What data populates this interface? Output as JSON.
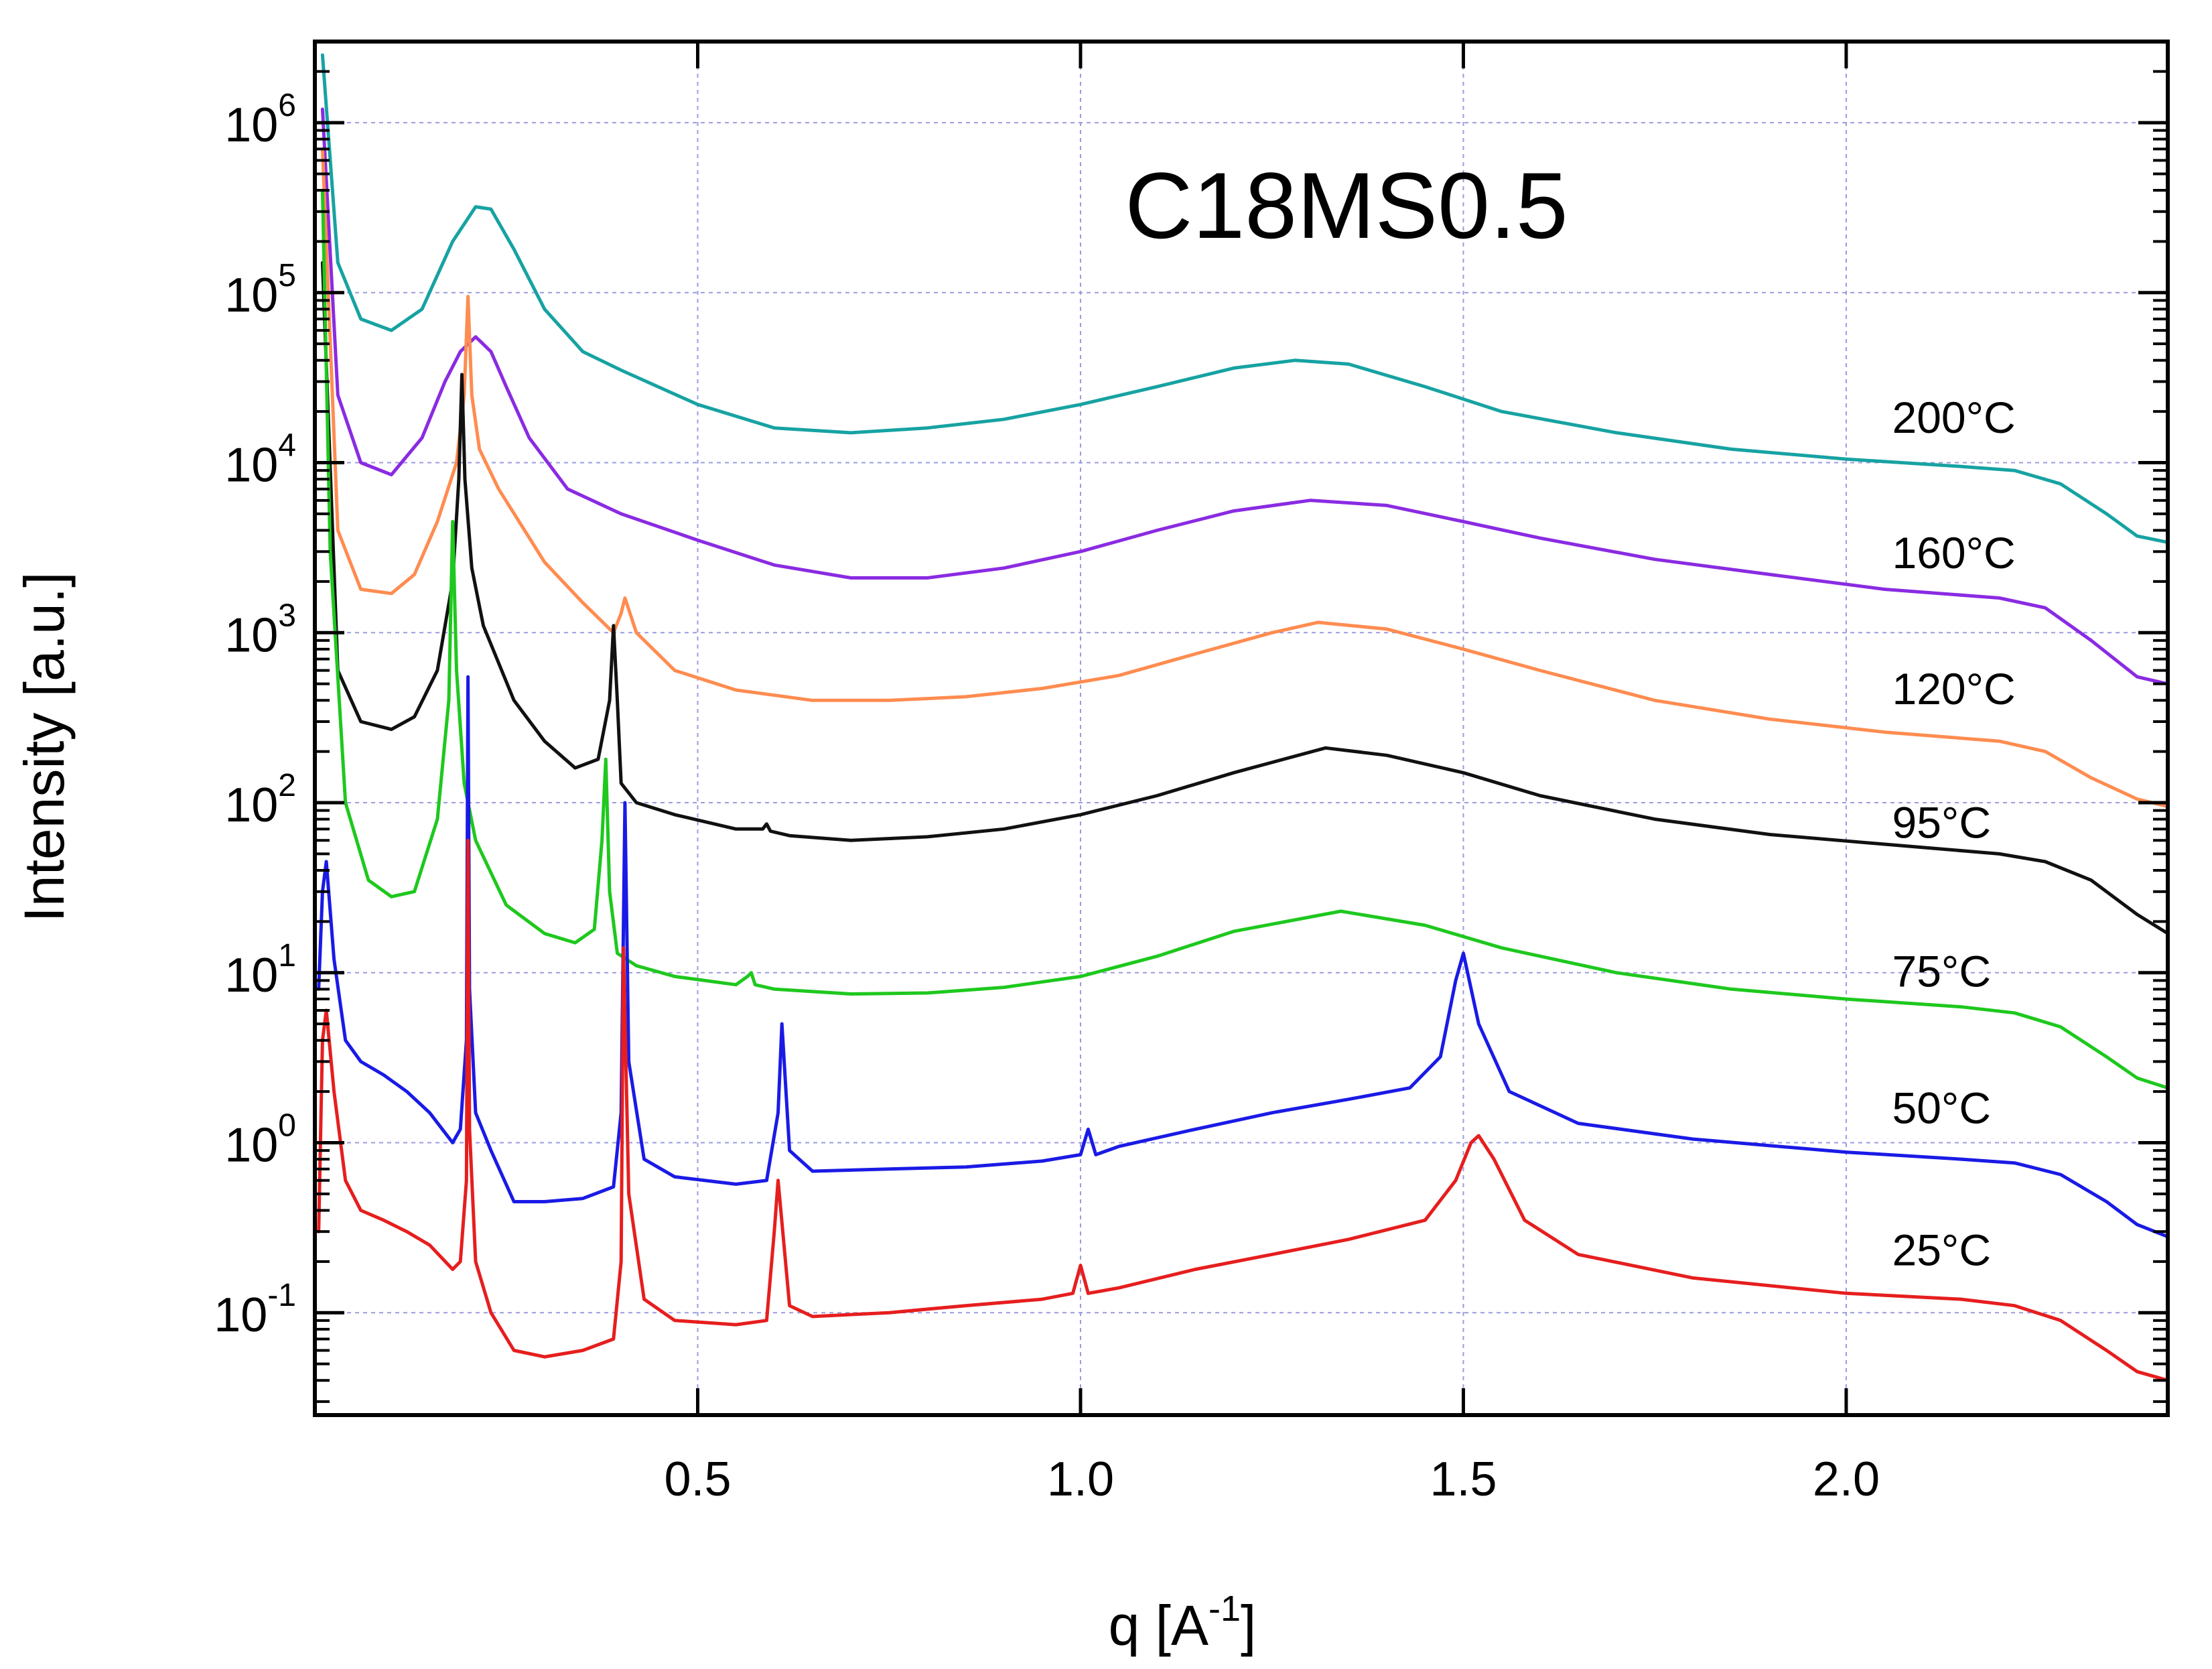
{
  "chart_data": {
    "type": "line",
    "title": "C18MS0.5",
    "xlabel": {
      "main": "q [A",
      "sup": "-1",
      "close": "]"
    },
    "ylabel": "Intensity [a.u.]",
    "xlim": [
      0.0,
      2.42
    ],
    "ylim": [
      0.025,
      3000000
    ],
    "yscale": "log",
    "grid": true,
    "x_ticks": [
      {
        "value": 0.5,
        "label": "0.5"
      },
      {
        "value": 1.0,
        "label": "1.0"
      },
      {
        "value": 1.5,
        "label": "1.5"
      },
      {
        "value": 2.0,
        "label": "2.0"
      }
    ],
    "y_ticks": [
      {
        "value": 0.1,
        "base": "10",
        "exp": "-1"
      },
      {
        "value": 1,
        "base": "10",
        "exp": "0"
      },
      {
        "value": 10,
        "base": "10",
        "exp": "1"
      },
      {
        "value": 100,
        "base": "10",
        "exp": "2"
      },
      {
        "value": 1000,
        "base": "10",
        "exp": "3"
      },
      {
        "value": 10000,
        "base": "10",
        "exp": "4"
      },
      {
        "value": 100000,
        "base": "10",
        "exp": "5"
      },
      {
        "value": 1000000,
        "base": "10",
        "exp": "6"
      }
    ],
    "series": [
      {
        "name": "200°C",
        "color": "#17a2a2",
        "x": [
          0.01,
          0.03,
          0.06,
          0.1,
          0.14,
          0.18,
          0.21,
          0.23,
          0.26,
          0.3,
          0.35,
          0.4,
          0.5,
          0.6,
          0.7,
          0.8,
          0.9,
          1.0,
          1.1,
          1.2,
          1.28,
          1.35,
          1.45,
          1.55,
          1.7,
          1.85,
          2.0,
          2.15,
          2.22,
          2.28,
          2.34,
          2.38,
          2.42
        ],
        "y": [
          2500000,
          150000,
          70000,
          60000,
          80000,
          200000,
          320000,
          310000,
          180000,
          80000,
          45000,
          35000,
          22000,
          16000,
          15000,
          16000,
          18000,
          22000,
          28000,
          36000,
          40000,
          38000,
          28000,
          20000,
          15000,
          12000,
          10500,
          9500,
          9000,
          7500,
          5000,
          3700,
          3400
        ]
      },
      {
        "name": "160°C",
        "color": "#8a2be2",
        "x": [
          0.01,
          0.03,
          0.06,
          0.1,
          0.14,
          0.17,
          0.19,
          0.21,
          0.23,
          0.25,
          0.28,
          0.33,
          0.4,
          0.5,
          0.6,
          0.7,
          0.8,
          0.9,
          1.0,
          1.1,
          1.2,
          1.3,
          1.4,
          1.5,
          1.6,
          1.75,
          1.9,
          2.05,
          2.2,
          2.26,
          2.32,
          2.38,
          2.42
        ],
        "y": [
          1200000,
          25000,
          10000,
          8500,
          14000,
          30000,
          45000,
          55000,
          45000,
          28000,
          14000,
          7000,
          5000,
          3500,
          2500,
          2100,
          2100,
          2400,
          3000,
          4000,
          5200,
          6000,
          5600,
          4500,
          3600,
          2700,
          2200,
          1800,
          1600,
          1400,
          900,
          550,
          500
        ]
      },
      {
        "name": "120°C",
        "color": "#ff8c50",
        "x": [
          0.01,
          0.03,
          0.06,
          0.1,
          0.13,
          0.16,
          0.185,
          0.195,
          0.2,
          0.205,
          0.215,
          0.24,
          0.3,
          0.35,
          0.39,
          0.4,
          0.405,
          0.42,
          0.47,
          0.55,
          0.65,
          0.75,
          0.85,
          0.95,
          1.05,
          1.15,
          1.25,
          1.31,
          1.4,
          1.5,
          1.6,
          1.75,
          1.9,
          2.05,
          2.2,
          2.26,
          2.32,
          2.38,
          2.42
        ],
        "y": [
          700000,
          4000,
          1800,
          1700,
          2200,
          4500,
          10000,
          25000,
          95000,
          25000,
          12000,
          7000,
          2600,
          1500,
          1000,
          1300,
          1600,
          1000,
          600,
          460,
          400,
          400,
          420,
          470,
          560,
          750,
          1000,
          1150,
          1050,
          800,
          600,
          400,
          310,
          260,
          230,
          200,
          140,
          105,
          95
        ]
      },
      {
        "name": "95°C",
        "color": "#111111",
        "x": [
          0.01,
          0.03,
          0.06,
          0.1,
          0.13,
          0.16,
          0.18,
          0.188,
          0.192,
          0.196,
          0.205,
          0.22,
          0.26,
          0.3,
          0.34,
          0.37,
          0.385,
          0.39,
          0.395,
          0.4,
          0.42,
          0.47,
          0.55,
          0.585,
          0.59,
          0.595,
          0.62,
          0.7,
          0.8,
          0.9,
          1.0,
          1.1,
          1.2,
          1.32,
          1.4,
          1.5,
          1.6,
          1.75,
          1.9,
          2.05,
          2.2,
          2.26,
          2.32,
          2.38,
          2.42
        ],
        "y": [
          150000,
          600,
          300,
          270,
          320,
          600,
          2000,
          8000,
          33000,
          8000,
          2400,
          1100,
          400,
          230,
          160,
          180,
          400,
          1100,
          400,
          130,
          100,
          85,
          70,
          70,
          75,
          68,
          64,
          60,
          63,
          70,
          85,
          110,
          150,
          210,
          190,
          150,
          110,
          80,
          65,
          57,
          50,
          45,
          35,
          22,
          17
        ]
      },
      {
        "name": "75°C",
        "color": "#1ec81e",
        "x": [
          0.01,
          0.02,
          0.04,
          0.07,
          0.1,
          0.13,
          0.16,
          0.175,
          0.18,
          0.185,
          0.195,
          0.21,
          0.25,
          0.3,
          0.34,
          0.365,
          0.375,
          0.38,
          0.385,
          0.395,
          0.42,
          0.47,
          0.55,
          0.565,
          0.57,
          0.575,
          0.6,
          0.7,
          0.8,
          0.9,
          1.0,
          1.1,
          1.2,
          1.34,
          1.45,
          1.55,
          1.7,
          1.85,
          2.0,
          2.15,
          2.22,
          2.28,
          2.34,
          2.38,
          2.42
        ],
        "y": [
          400000,
          3000,
          100,
          35,
          28,
          30,
          80,
          400,
          4500,
          600,
          130,
          60,
          25,
          17,
          15,
          18,
          60,
          180,
          30,
          13,
          11,
          9.5,
          8.5,
          9.5,
          10,
          8.5,
          8.0,
          7.5,
          7.6,
          8.2,
          9.5,
          12.5,
          17.5,
          23,
          19,
          14,
          10,
          8.0,
          7.0,
          6.3,
          5.8,
          4.8,
          3.2,
          2.4,
          2.1
        ]
      },
      {
        "name": "50°C",
        "color": "#1a1ae6",
        "x": [
          0.005,
          0.01,
          0.015,
          0.025,
          0.04,
          0.06,
          0.09,
          0.12,
          0.15,
          0.18,
          0.19,
          0.198,
          0.2,
          0.202,
          0.21,
          0.23,
          0.26,
          0.3,
          0.35,
          0.39,
          0.4,
          0.405,
          0.41,
          0.43,
          0.47,
          0.55,
          0.59,
          0.605,
          0.61,
          0.62,
          0.65,
          0.75,
          0.85,
          0.95,
          1.0,
          1.01,
          1.02,
          1.05,
          1.15,
          1.25,
          1.35,
          1.43,
          1.47,
          1.49,
          1.5,
          1.52,
          1.56,
          1.65,
          1.8,
          2.0,
          2.15,
          2.22,
          2.28,
          2.34,
          2.38,
          2.42
        ],
        "y": [
          8,
          30,
          45,
          12,
          4,
          3.0,
          2.5,
          2.0,
          1.5,
          1.0,
          1.2,
          4,
          550,
          8,
          1.5,
          0.9,
          0.45,
          0.45,
          0.47,
          0.55,
          1.5,
          100,
          3,
          0.8,
          0.63,
          0.57,
          0.6,
          1.5,
          5,
          0.9,
          0.68,
          0.7,
          0.72,
          0.78,
          0.85,
          1.2,
          0.85,
          0.95,
          1.2,
          1.5,
          1.8,
          2.1,
          3.2,
          9,
          13,
          5,
          2.0,
          1.3,
          1.05,
          0.88,
          0.8,
          0.76,
          0.65,
          0.45,
          0.33,
          0.28
        ]
      },
      {
        "name": "25°C",
        "color": "#e61e1e",
        "x": [
          0.005,
          0.01,
          0.015,
          0.025,
          0.04,
          0.06,
          0.09,
          0.12,
          0.15,
          0.18,
          0.19,
          0.198,
          0.2,
          0.202,
          0.21,
          0.23,
          0.26,
          0.3,
          0.35,
          0.39,
          0.4,
          0.403,
          0.41,
          0.43,
          0.47,
          0.55,
          0.59,
          0.6,
          0.605,
          0.62,
          0.65,
          0.75,
          0.85,
          0.95,
          0.99,
          1.0,
          1.01,
          1.05,
          1.15,
          1.25,
          1.35,
          1.45,
          1.49,
          1.51,
          1.52,
          1.54,
          1.58,
          1.65,
          1.8,
          2.0,
          2.15,
          2.22,
          2.28,
          2.34,
          2.38,
          2.42
        ],
        "y": [
          0.3,
          4,
          6,
          2,
          0.6,
          0.4,
          0.35,
          0.3,
          0.25,
          0.18,
          0.2,
          0.6,
          60,
          1.2,
          0.2,
          0.1,
          0.06,
          0.055,
          0.06,
          0.07,
          0.2,
          14,
          0.5,
          0.12,
          0.09,
          0.085,
          0.09,
          0.3,
          0.6,
          0.11,
          0.095,
          0.1,
          0.11,
          0.12,
          0.13,
          0.19,
          0.13,
          0.14,
          0.18,
          0.22,
          0.27,
          0.35,
          0.6,
          1.0,
          1.1,
          0.8,
          0.35,
          0.22,
          0.16,
          0.13,
          0.12,
          0.11,
          0.09,
          0.06,
          0.045,
          0.04
        ]
      }
    ],
    "labels": [
      {
        "text": "200°C",
        "x": 2.06,
        "y": 15000
      },
      {
        "text": "160°C",
        "x": 2.06,
        "y": 2400
      },
      {
        "text": "120°C",
        "x": 2.06,
        "y": 380
      },
      {
        "text": "95°C",
        "x": 2.06,
        "y": 62
      },
      {
        "text": "75°C",
        "x": 2.06,
        "y": 8.3
      },
      {
        "text": "50°C",
        "x": 2.06,
        "y": 1.3
      },
      {
        "text": "25°C",
        "x": 2.06,
        "y": 0.19
      }
    ]
  }
}
